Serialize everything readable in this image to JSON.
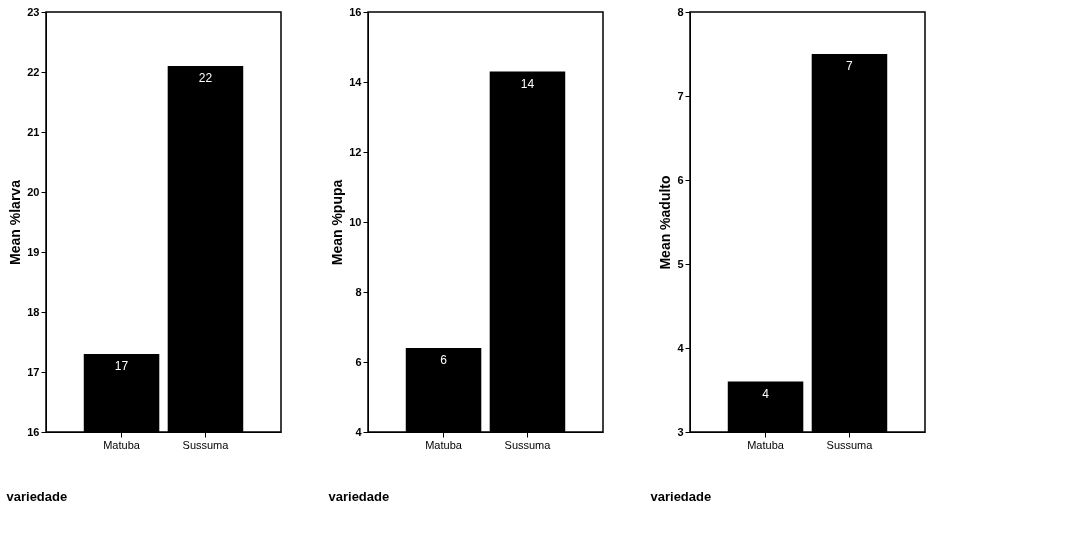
{
  "chart_data": [
    {
      "type": "bar",
      "categories": [
        "Matuba",
        "Sussuma"
      ],
      "values": [
        17.3,
        22.1
      ],
      "value_labels": [
        "17",
        "22"
      ],
      "color": "#000000",
      "xlabel": "variedade",
      "ylabel": "Mean %larva",
      "ylim": [
        16,
        23
      ],
      "yticks": [
        16,
        17,
        18,
        19,
        20,
        21,
        22,
        23
      ],
      "grid": false
    },
    {
      "type": "bar",
      "categories": [
        "Matuba",
        "Sussuma"
      ],
      "values": [
        6.4,
        14.3
      ],
      "value_labels": [
        "6",
        "14"
      ],
      "color": "#000000",
      "xlabel": "variedade",
      "ylabel": "Mean %pupa",
      "ylim": [
        4,
        16
      ],
      "yticks": [
        4,
        6,
        8,
        10,
        12,
        14,
        16
      ],
      "grid": false
    },
    {
      "type": "bar",
      "categories": [
        "Matuba",
        "Sussuma"
      ],
      "values": [
        3.6,
        7.5
      ],
      "value_labels": [
        "4",
        "7"
      ],
      "color": "#000000",
      "xlabel": "variedade",
      "ylabel": "Mean %adulto",
      "ylim": [
        3,
        8
      ],
      "yticks": [
        3,
        4,
        5,
        6,
        7,
        8
      ],
      "grid": false
    }
  ]
}
